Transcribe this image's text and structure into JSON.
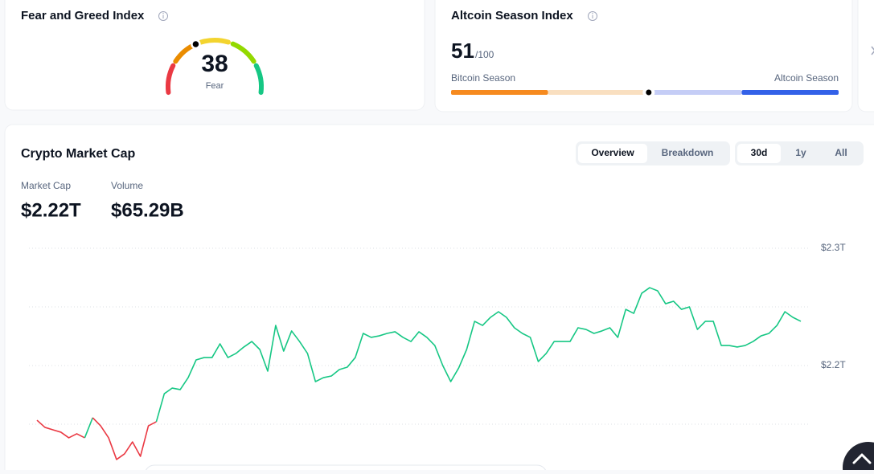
{
  "fear_greed": {
    "title": "Fear and Greed Index",
    "value": 38,
    "label": "Fear"
  },
  "altcoin_season": {
    "title": "Altcoin Season Index",
    "value": 51,
    "scale": {
      "value": 100,
      "label": "/100"
    },
    "left_label": "Bitcoin Season",
    "right_label": "Altcoin Season"
  },
  "market_cap": {
    "title": "Crypto Market Cap",
    "view_tabs": [
      "Overview",
      "Breakdown"
    ],
    "selected_view": 0,
    "range_tabs": [
      "30d",
      "1y",
      "All"
    ],
    "selected_range": 0,
    "stats": [
      {
        "label": "Market Cap",
        "value": "$2.22T"
      },
      {
        "label": "Volume",
        "value": "$65.29B"
      }
    ]
  },
  "chart_data": {
    "type": "line",
    "up_color": "#16c784",
    "down_color": "#ea3943",
    "ylim": [
      2110000000000,
      2310000000000
    ],
    "yticks": [
      {
        "value": 2200000000000,
        "label": "$2.2T"
      },
      {
        "value": 2300000000000,
        "label": "$2.3T"
      }
    ],
    "minor_gridlines": [
      2150000000000,
      2250000000000
    ],
    "grid": true,
    "values": [
      2153400000000,
      2147300000000,
      2145200000000,
      2143200000000,
      2138400000000,
      2141800000000,
      2138400000000,
      2155500000000,
      2148600000000,
      2138400000000,
      2119900000000,
      2124700000000,
      2134900000000,
      2122600000000,
      2148600000000,
      2152100000000,
      2176000000000,
      2180800000000,
      2179500000000,
      2189700000000,
      2204800000000,
      2206800000000,
      2206800000000,
      2218500000000,
      2206800000000,
      2210300000000,
      2215800000000,
      2220500000000,
      2213700000000,
      2195200000000,
      2234200000000,
      2212300000000,
      2229500000000,
      2220500000000,
      2210300000000,
      2186300000000,
      2189700000000,
      2191100000000,
      2196600000000,
      2198600000000,
      2206800000000,
      2227400000000,
      2224000000000,
      2225300000000,
      2227400000000,
      2228800000000,
      2224000000000,
      2220500000000,
      2228800000000,
      2224000000000,
      2217100000000,
      2200000000000,
      2186300000000,
      2197900000000,
      2213700000000,
      2237700000000,
      2234200000000,
      2241100000000,
      2245900000000,
      2241100000000,
      2232200000000,
      2227400000000,
      2224000000000,
      2203400000000,
      2210300000000,
      2220500000000,
      2220500000000,
      2220500000000,
      2232200000000,
      2230800000000,
      2227400000000,
      2229500000000,
      2232200000000,
      2224000000000,
      2247900000000,
      2244500000000,
      2261600000000,
      2266400000000,
      2263700000000,
      2252700000000,
      2254800000000,
      2247900000000,
      2250000000000,
      2230800000000,
      2237700000000,
      2237700000000,
      2217100000000,
      2217100000000,
      2215800000000,
      2217100000000,
      2220500000000,
      2225300000000,
      2227400000000,
      2234200000000,
      2245900000000,
      2241100000000,
      2237700000000
    ]
  }
}
